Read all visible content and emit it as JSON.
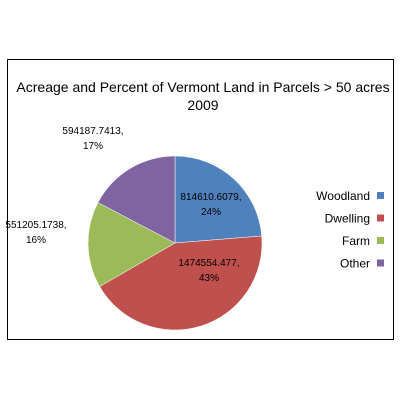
{
  "chart_data": {
    "type": "pie",
    "title_line1": "Acreage and Percent of Vermont Land in Parcels > 50 acres",
    "title_line2": "2009",
    "slices": [
      {
        "name": "Woodland",
        "value": 814610.6079,
        "percent": "24%",
        "value_label": "814610.6079,",
        "color": "#4f81bd"
      },
      {
        "name": "Dwelling",
        "value": 1474554.477,
        "percent": "43%",
        "value_label": "1474554.477,",
        "color": "#c0504d"
      },
      {
        "name": "Farm",
        "value": 551205.1738,
        "percent": "16%",
        "value_label": "551205.1738,",
        "color": "#9bbb59"
      },
      {
        "name": "Other",
        "value": 594187.7413,
        "percent": "17%",
        "value_label": "594187.7413,",
        "color": "#8064a2"
      }
    ],
    "legend_position": "right"
  }
}
